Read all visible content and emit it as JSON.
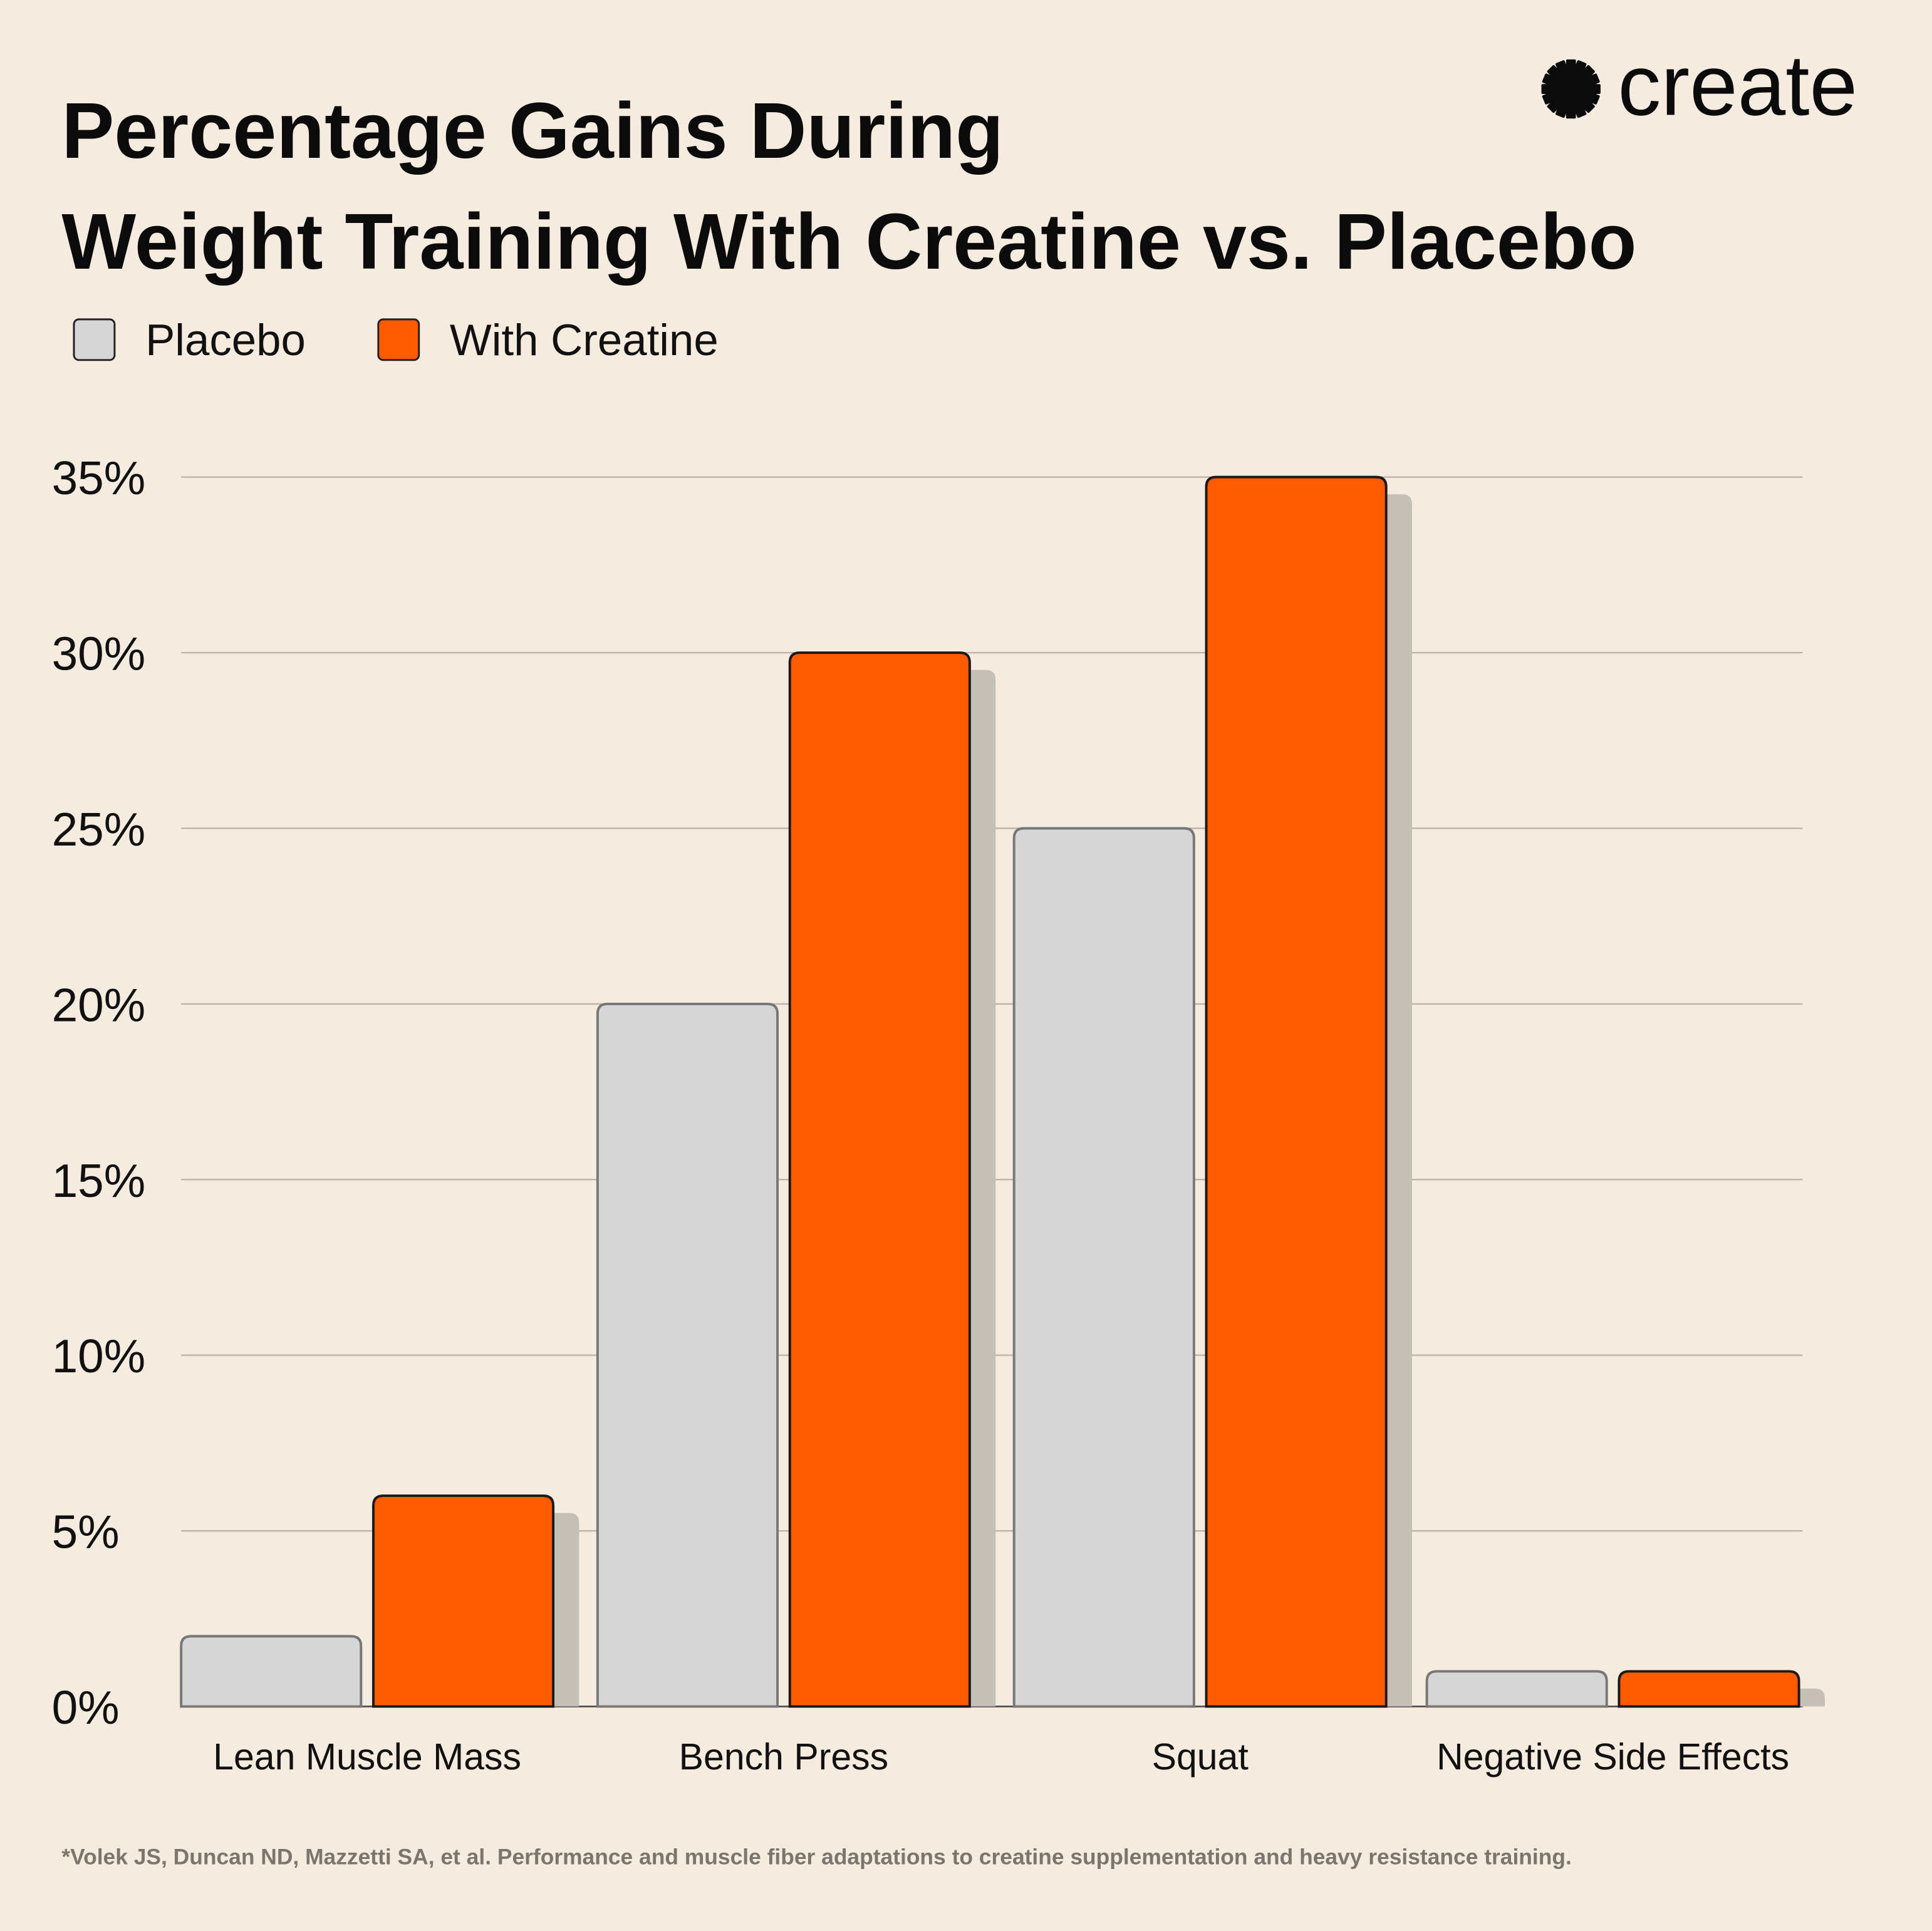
{
  "brand": {
    "logo_text": "create",
    "logo_icon": "asterisk-burst-icon"
  },
  "colors": {
    "background": "#f6ebdf",
    "placebo": "#d6d6d6",
    "creatine": "#ff5a00",
    "grid": "#bdb5aa",
    "shadow": "#c4bfb7"
  },
  "chart_data": {
    "type": "bar",
    "title": [
      "Percentage Gains During",
      "Weight Training With Creatine vs. Placebo"
    ],
    "categories": [
      "Lean Muscle Mass",
      "Bench Press",
      "Squat",
      "Negative Side Effects"
    ],
    "series": [
      {
        "name": "Placebo",
        "values": [
          2,
          20,
          25,
          1
        ]
      },
      {
        "name": "With Creatine",
        "values": [
          6,
          30,
          35,
          1
        ]
      }
    ],
    "yticks": [
      "0%",
      "5%",
      "10%",
      "15%",
      "20%",
      "25%",
      "30%",
      "35%"
    ],
    "ylim": [
      0,
      35
    ],
    "grid": true,
    "legend_placement": "top-left"
  },
  "footnote": "*Volek JS, Duncan ND, Mazzetti SA, et al. Performance and muscle fiber adaptations to creatine supplementation and heavy resistance training."
}
